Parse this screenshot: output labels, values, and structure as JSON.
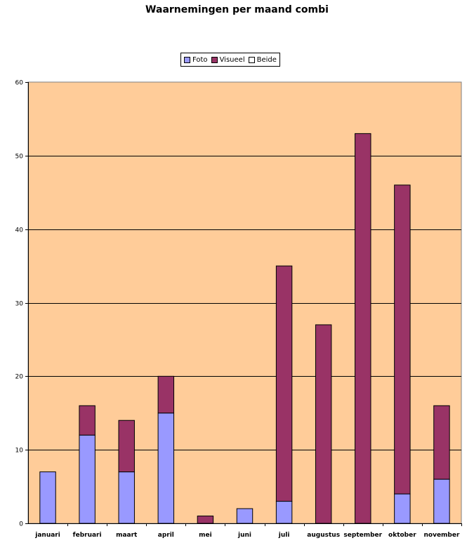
{
  "chart_data": {
    "type": "bar",
    "stacked": true,
    "title": "Waarnemingen per maand combi",
    "categories": [
      "januari",
      "februari",
      "maart",
      "april",
      "mei",
      "juni",
      "juli",
      "augustus",
      "september",
      "oktober",
      "november"
    ],
    "series": [
      {
        "name": "Foto",
        "color": "#9999ff",
        "values": [
          7,
          12,
          7,
          15,
          0,
          2,
          3,
          0,
          0,
          4,
          6
        ]
      },
      {
        "name": "Visueel",
        "color": "#993366",
        "values": [
          0,
          4,
          7,
          5,
          1,
          0,
          32,
          27,
          53,
          42,
          10
        ]
      },
      {
        "name": "Beide",
        "color": "#ffffff",
        "values": [
          0,
          0,
          0,
          0,
          0,
          0,
          0,
          0,
          0,
          0,
          0
        ]
      }
    ],
    "ylim": [
      0,
      60
    ],
    "yticks": [
      0,
      10,
      20,
      30,
      40,
      50,
      60
    ],
    "grid": true,
    "legend_position": "top",
    "plot_background": "#ffcc99"
  }
}
